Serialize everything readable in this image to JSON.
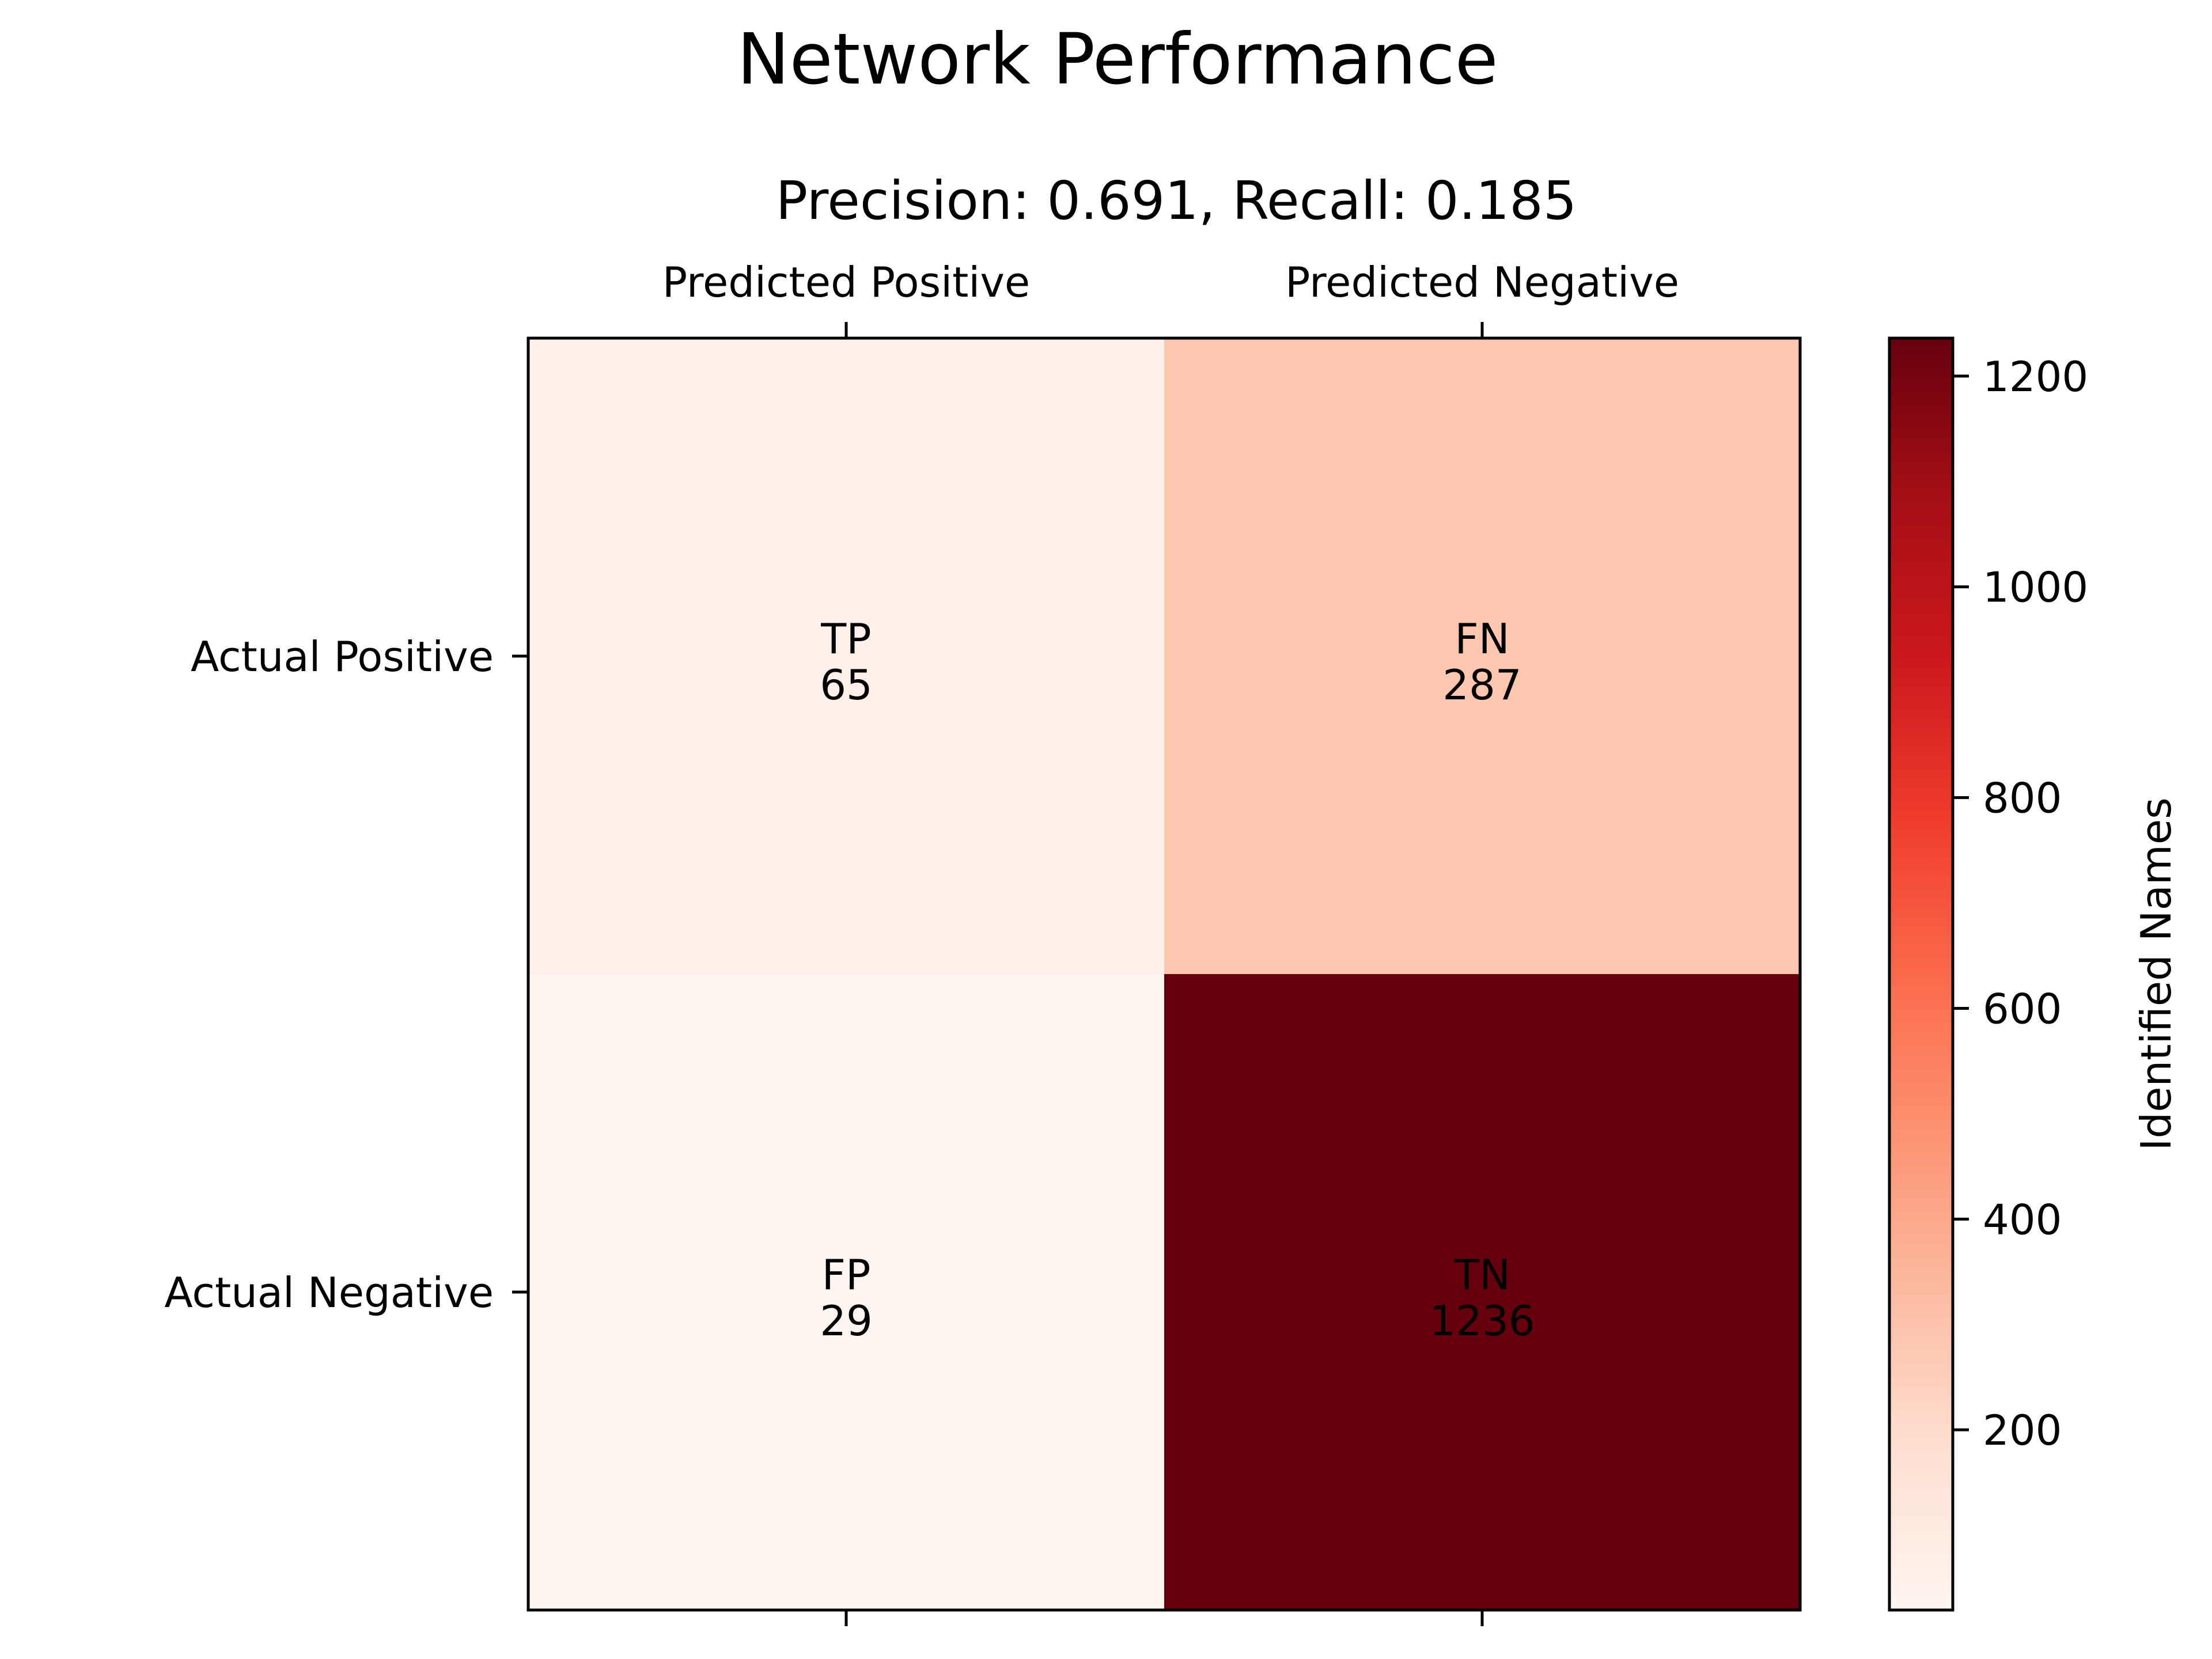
{
  "chart_data": {
    "type": "heatmap",
    "title": "Network Performance",
    "subtitle": "Precision: 0.691, Recall: 0.185",
    "x_categories": [
      "Predicted Positive",
      "Predicted Negative"
    ],
    "y_categories": [
      "Actual Positive",
      "Actual Negative"
    ],
    "cells": [
      [
        {
          "label": "TP",
          "value": 65
        },
        {
          "label": "FN",
          "value": 287
        }
      ],
      [
        {
          "label": "FP",
          "value": 29
        },
        {
          "label": "TN",
          "value": 1236
        }
      ]
    ],
    "colorbar": {
      "label": "Identified Names",
      "range": [
        29,
        1236
      ],
      "ticks": [
        200,
        400,
        600,
        800,
        1000,
        1200
      ],
      "colormap": "Reds"
    },
    "grid": false
  }
}
